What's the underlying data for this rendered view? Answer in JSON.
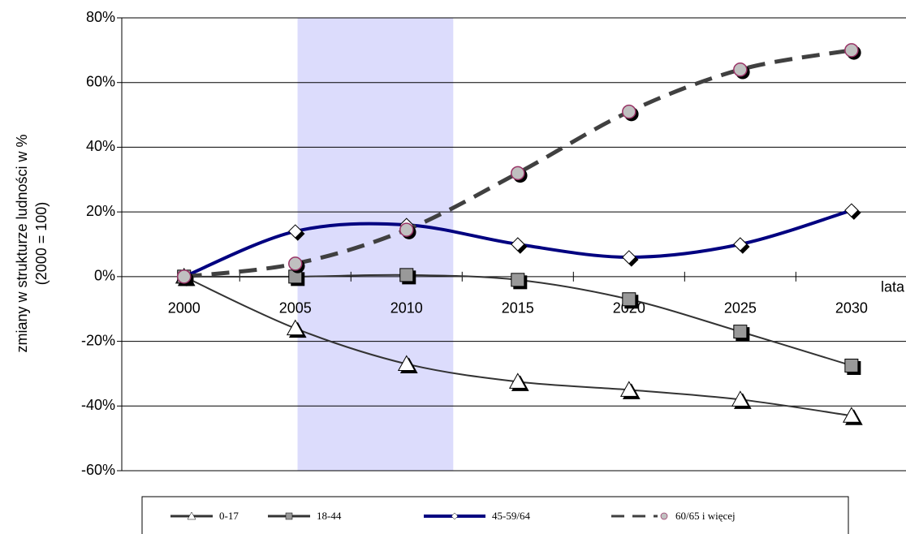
{
  "chart_data": {
    "type": "line",
    "y_label": [
      "zmiany w strukturze ludności w %",
      "(2000 = 100)"
    ],
    "x_label": "lata",
    "xlim": [
      1997.2,
      2032.45
    ],
    "xticks": [
      2000,
      2005,
      2010,
      2015,
      2020,
      2025,
      2030
    ],
    "ylim": [
      -60,
      80
    ],
    "yticks": [
      {
        "value": -60,
        "label": "-60%"
      },
      {
        "value": -40,
        "label": "-40%"
      },
      {
        "value": -20,
        "label": "-20%"
      },
      {
        "value": 0,
        "label": "0%"
      },
      {
        "value": 20,
        "label": "20%"
      },
      {
        "value": 40,
        "label": "40%"
      },
      {
        "value": 60,
        "label": "60%"
      },
      {
        "value": 80,
        "label": "80%"
      }
    ],
    "grid": true,
    "shaded_range": [
      2005.1,
      2012.1
    ],
    "shaded_color": "#dcdcfc",
    "x": [
      2000,
      2005,
      2010,
      2015,
      2020,
      2025,
      2030
    ],
    "series": [
      {
        "name": "0-17",
        "color": "#333333",
        "marker": "triangle",
        "marker_color": "#ffffff",
        "values": [
          0,
          -16,
          -27,
          -32.5,
          -35,
          -38,
          -43
        ]
      },
      {
        "name": "18-44",
        "color": "#333333",
        "marker": "square",
        "marker_color": "#999999",
        "values": [
          0,
          0,
          0.5,
          -1,
          -7,
          -17,
          -27.5
        ]
      },
      {
        "name": "45-59/64",
        "color": "#000080",
        "marker": "diamond",
        "marker_color": "#ffffff",
        "values": [
          0,
          14,
          16,
          10,
          6,
          10,
          20.5
        ]
      },
      {
        "name": "60/65 i więcej",
        "color": "#404040",
        "marker": "circle",
        "marker_color": "#c0c0c0",
        "dashed": true,
        "values": [
          0,
          4,
          14.5,
          32,
          51,
          64,
          70
        ]
      }
    ]
  }
}
